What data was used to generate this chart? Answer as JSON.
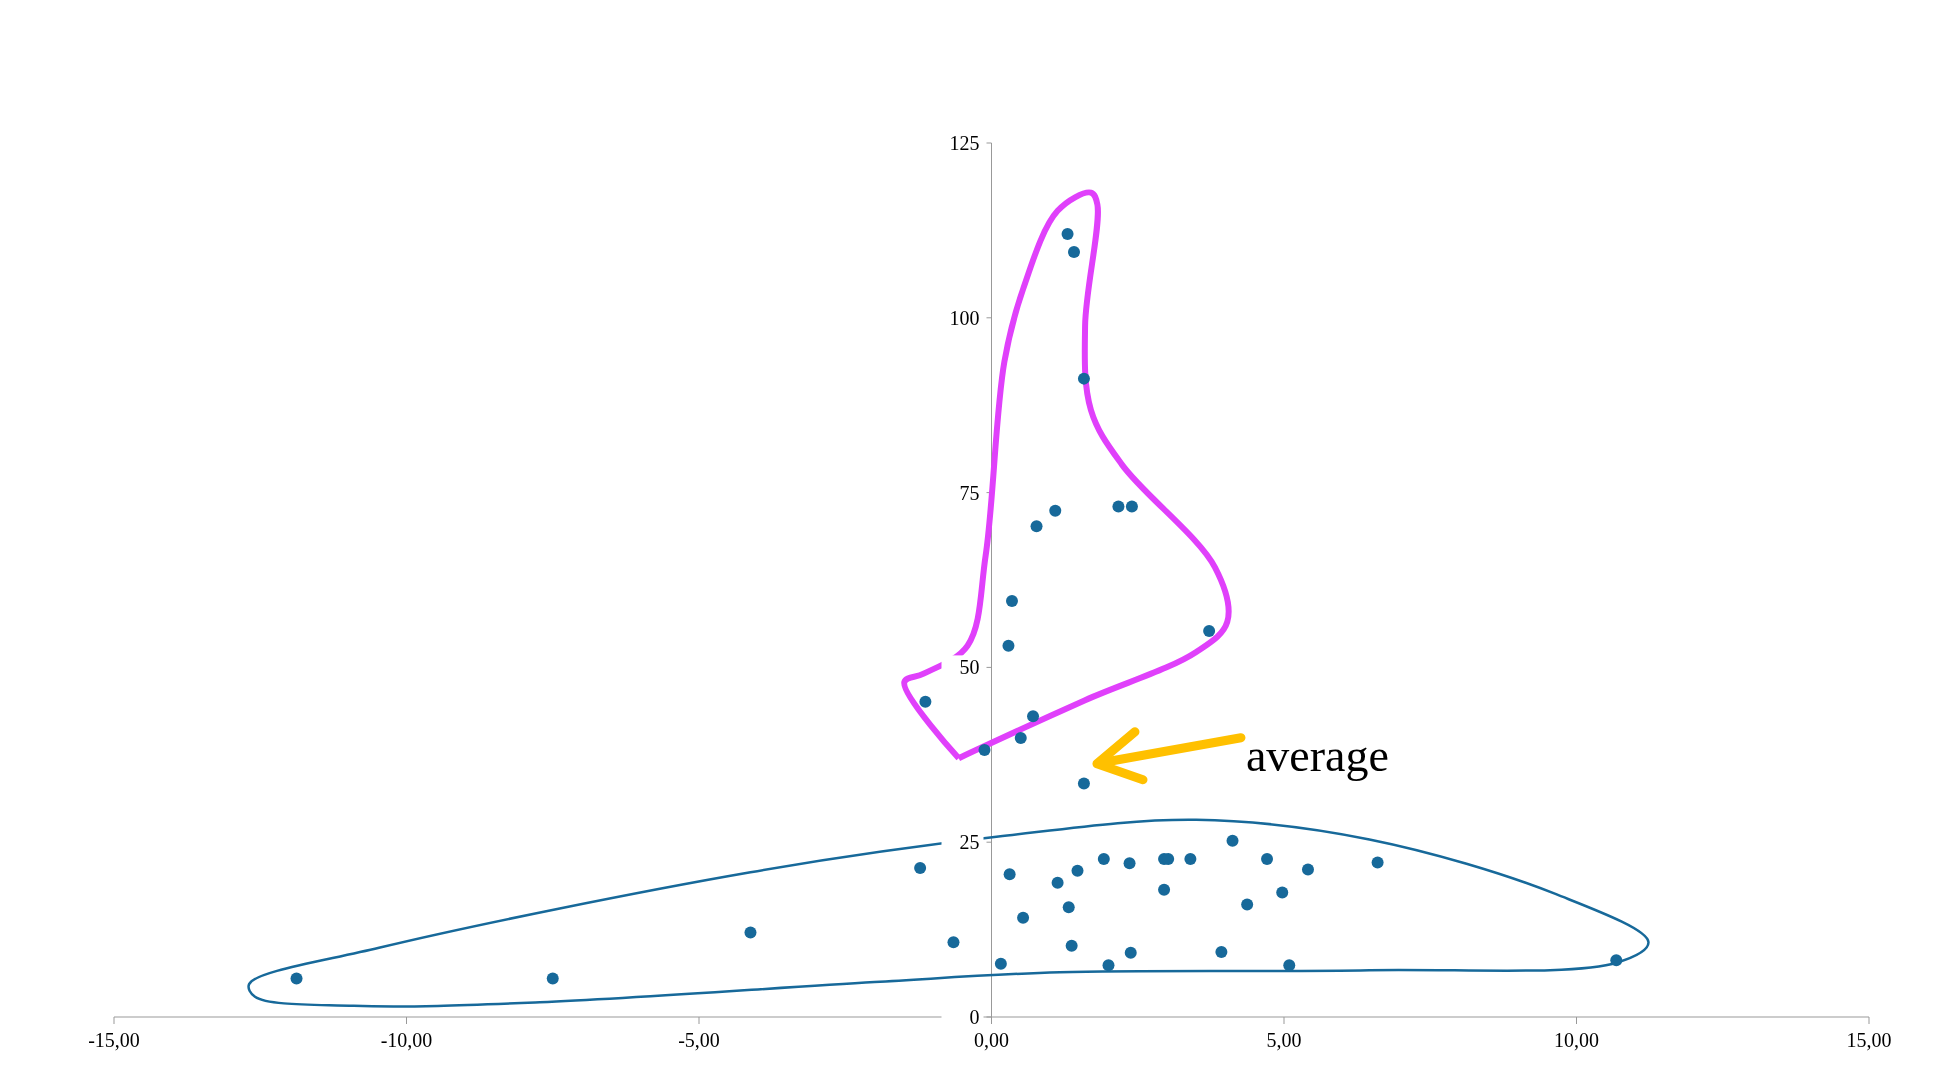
{
  "chart_data": {
    "type": "scatter",
    "color": "#17699a",
    "marker": "circle",
    "xlim": [
      -15,
      15
    ],
    "ylim": [
      0,
      125
    ],
    "xticks": [
      {
        "value": -15,
        "label": "-15,00"
      },
      {
        "value": -10,
        "label": "-10,00"
      },
      {
        "value": -5,
        "label": "-5,00"
      },
      {
        "value": 0,
        "label": "0,00"
      },
      {
        "value": 5,
        "label": "5,00"
      },
      {
        "value": 10,
        "label": "10,00"
      },
      {
        "value": 15,
        "label": "15,00"
      }
    ],
    "yticks": [
      0,
      25,
      50,
      75,
      100,
      125
    ],
    "x": [
      1.3,
      1.41,
      1.58,
      1.09,
      0.77,
      2.17,
      2.4,
      0.35,
      0.29,
      3.72,
      -1.13,
      0.71,
      0.5,
      -0.12,
      1.58,
      -11.88,
      -7.5,
      -4.12,
      -1.22,
      -0.65,
      0.16,
      0.31,
      0.54,
      1.13,
      1.32,
      1.47,
      1.37,
      1.92,
      2.0,
      2.36,
      2.38,
      2.95,
      3.02,
      2.95,
      3.4,
      4.12,
      3.93,
      4.37,
      4.71,
      4.97,
      5.09,
      5.41,
      6.6,
      10.68
    ],
    "values": [
      112,
      109.4,
      91.3,
      72.4,
      70.2,
      73,
      73,
      59.5,
      53.1,
      55.2,
      45.1,
      43,
      39.9,
      38.2,
      33.4,
      5.5,
      5.5,
      12.1,
      21.3,
      10.7,
      7.6,
      20.4,
      14.2,
      19.2,
      15.7,
      20.9,
      10.2,
      22.6,
      7.4,
      22,
      9.2,
      22.6,
      22.6,
      18.2,
      22.6,
      25.2,
      9.3,
      16.1,
      22.6,
      17.8,
      7.4,
      21.1,
      22.1,
      8.1
    ],
    "annotations": [
      "average"
    ]
  }
}
